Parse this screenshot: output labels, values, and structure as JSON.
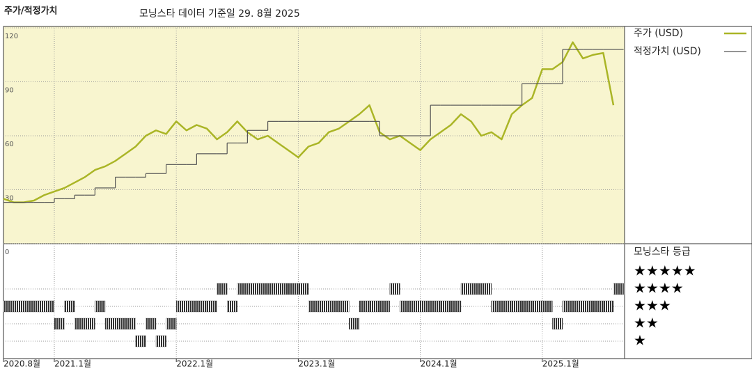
{
  "chart_data": {
    "type": "line",
    "title": "주가/적정가치",
    "subtitle": "모닝스타 데이터 기준일 29. 8월 2025",
    "x": [
      "2020-08",
      "2020-09",
      "2020-10",
      "2020-11",
      "2020-12",
      "2021-01",
      "2021-02",
      "2021-03",
      "2021-04",
      "2021-05",
      "2021-06",
      "2021-07",
      "2021-08",
      "2021-09",
      "2021-10",
      "2021-11",
      "2021-12",
      "2022-01",
      "2022-02",
      "2022-03",
      "2022-04",
      "2022-05",
      "2022-06",
      "2022-07",
      "2022-08",
      "2022-09",
      "2022-10",
      "2022-11",
      "2022-12",
      "2023-01",
      "2023-02",
      "2023-03",
      "2023-04",
      "2023-05",
      "2023-06",
      "2023-07",
      "2023-08",
      "2023-09",
      "2023-10",
      "2023-11",
      "2023-12",
      "2024-01",
      "2024-02",
      "2024-03",
      "2024-04",
      "2024-05",
      "2024-06",
      "2024-07",
      "2024-08",
      "2024-09",
      "2024-10",
      "2024-11",
      "2024-12",
      "2025-01",
      "2025-02",
      "2025-03",
      "2025-04",
      "2025-05",
      "2025-06",
      "2025-07",
      "2025-08"
    ],
    "series": [
      {
        "name": "주가 (USD)",
        "color": "#aab526",
        "style": "line",
        "values": [
          25,
          23,
          23,
          24,
          27,
          29,
          31,
          34,
          37,
          41,
          43,
          46,
          50,
          54,
          60,
          63,
          61,
          68,
          63,
          66,
          64,
          58,
          62,
          68,
          62,
          58,
          60,
          56,
          52,
          48,
          54,
          56,
          62,
          64,
          68,
          72,
          77,
          62,
          58,
          60,
          56,
          52,
          58,
          62,
          66,
          72,
          68,
          60,
          62,
          58,
          72,
          77,
          81,
          97,
          97,
          101,
          112,
          103,
          105,
          106,
          77
        ]
      },
      {
        "name": "적정가치 (USD)",
        "color": "#555555",
        "style": "step",
        "values": [
          23,
          23,
          23,
          23,
          23,
          25,
          25,
          27,
          27,
          31,
          31,
          37,
          37,
          37,
          39,
          39,
          44,
          44,
          44,
          50,
          50,
          50,
          56,
          56,
          63,
          63,
          68,
          68,
          68,
          68,
          68,
          68,
          68,
          68,
          68,
          68,
          68,
          60,
          60,
          60,
          60,
          60,
          77,
          77,
          77,
          77,
          77,
          77,
          77,
          77,
          77,
          89,
          89,
          89,
          89,
          108,
          108,
          108,
          108,
          108,
          108
        ]
      }
    ],
    "ylim": [
      0,
      120
    ],
    "yticks": [
      0,
      30,
      60,
      90,
      120
    ],
    "xticks": [
      {
        "value": "2020-08",
        "label": "2020.8월"
      },
      {
        "value": "2021-01",
        "label": "2021.1월"
      },
      {
        "value": "2022-01",
        "label": "2022.1월"
      },
      {
        "value": "2023-01",
        "label": "2023.1월"
      },
      {
        "value": "2024-01",
        "label": "2024.1월"
      },
      {
        "value": "2025-01",
        "label": "2025.1월"
      }
    ],
    "grid": true,
    "background": "#f8f5cf",
    "ratings": {
      "title": "모닝스타 등급",
      "labels": [
        "★",
        "★★",
        "★★★",
        "★★★★",
        "★★★★★"
      ],
      "color": "#333333",
      "values": [
        3,
        3,
        3,
        3,
        3,
        2,
        3,
        2,
        2,
        3,
        2,
        2,
        2,
        1,
        2,
        1,
        2,
        3,
        3,
        3,
        3,
        4,
        3,
        4,
        4,
        4,
        4,
        4,
        4,
        4,
        3,
        3,
        3,
        3,
        2,
        3,
        3,
        3,
        4,
        3,
        3,
        3,
        3,
        3,
        3,
        4,
        4,
        4,
        3,
        3,
        3,
        3,
        3,
        3,
        2,
        3,
        3,
        3,
        3,
        3,
        4
      ]
    }
  }
}
